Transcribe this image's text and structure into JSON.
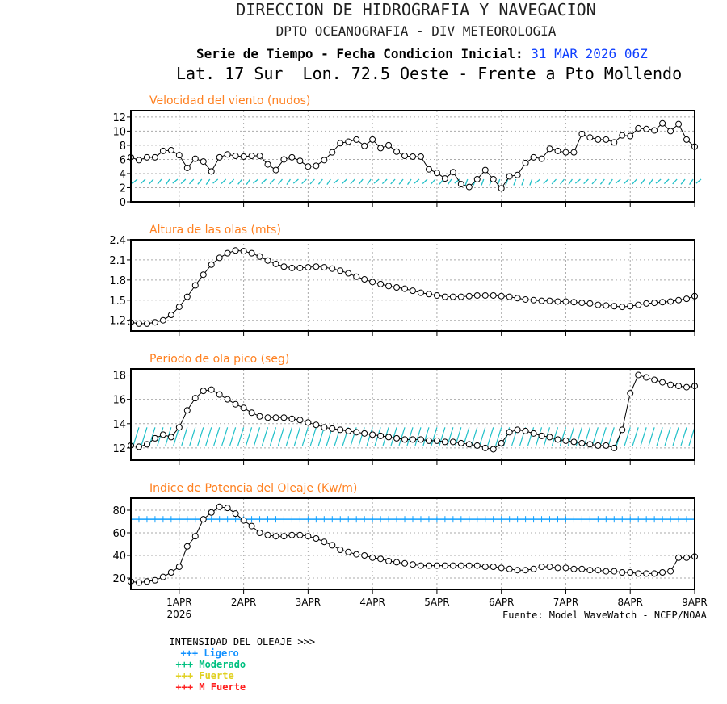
{
  "header": {
    "title": "DIRECCION DE HIDROGRAFIA Y NAVEGACION",
    "subtitle": "DPTO OCEANOGRAFIA - DIV METEOROLOGIA",
    "series_label": "Serie de Tiempo - Fecha Condicion Inicial:",
    "init_date": "31 MAR 2026 06Z",
    "location": "Lat. 17 Sur  Lon. 72.5 Oeste - Frente a Pto Mollendo"
  },
  "colors": {
    "title": "#ff8020",
    "date": "#1040ff",
    "arrows": "#20c0c8",
    "threshold": "#10a0ff"
  },
  "chart_data": [
    {
      "type": "line",
      "title": "Velocidad del viento (nudos)",
      "ylim": [
        0,
        12.9
      ],
      "yticks": [
        "0",
        "2",
        "4",
        "6",
        "8",
        "10",
        "12"
      ],
      "ytick_values": [
        0,
        2,
        4,
        6,
        8,
        10,
        12
      ],
      "values": [
        6.3,
        5.9,
        6.3,
        6.3,
        7.2,
        7.3,
        6.6,
        4.8,
        6.1,
        5.7,
        4.3,
        6.3,
        6.7,
        6.5,
        6.4,
        6.5,
        6.5,
        5.3,
        4.5,
        6.0,
        6.3,
        5.8,
        5.0,
        5.1,
        5.9,
        7.0,
        8.3,
        8.5,
        8.8,
        7.9,
        8.8,
        7.6,
        8.0,
        7.1,
        6.5,
        6.4,
        6.4,
        4.6,
        4.1,
        3.3,
        4.2,
        2.5,
        2.1,
        3.2,
        4.5,
        3.2,
        1.9,
        3.6,
        3.8,
        5.5,
        6.3,
        6.1,
        7.5,
        7.2,
        7.0,
        7.0,
        9.6,
        9.1,
        8.8,
        8.8,
        8.4,
        9.4,
        9.3,
        10.4,
        10.3,
        10.1,
        11.1,
        10.0,
        11.0,
        8.8,
        7.8
      ],
      "wind_arrows": true
    },
    {
      "type": "line",
      "title": "Altura de las olas (mts)",
      "ylim": [
        1.04,
        2.4
      ],
      "yticks": [
        "1.2",
        "1.5",
        "1.8",
        "2.1",
        "2.4"
      ],
      "ytick_values": [
        1.2,
        1.5,
        1.8,
        2.1,
        2.4
      ],
      "values": [
        1.17,
        1.15,
        1.15,
        1.17,
        1.2,
        1.28,
        1.4,
        1.55,
        1.72,
        1.88,
        2.03,
        2.13,
        2.2,
        2.24,
        2.23,
        2.2,
        2.15,
        2.09,
        2.04,
        2.0,
        1.98,
        1.98,
        1.99,
        2.0,
        1.99,
        1.97,
        1.94,
        1.9,
        1.85,
        1.81,
        1.77,
        1.74,
        1.71,
        1.69,
        1.67,
        1.64,
        1.61,
        1.59,
        1.57,
        1.55,
        1.55,
        1.55,
        1.56,
        1.57,
        1.57,
        1.57,
        1.56,
        1.55,
        1.53,
        1.51,
        1.5,
        1.49,
        1.49,
        1.48,
        1.48,
        1.47,
        1.46,
        1.45,
        1.43,
        1.42,
        1.41,
        1.4,
        1.41,
        1.43,
        1.45,
        1.46,
        1.47,
        1.48,
        1.5,
        1.52,
        1.56
      ]
    },
    {
      "type": "line",
      "title": "Periodo de ola pico (seg)",
      "ylim": [
        11,
        18.5
      ],
      "yticks": [
        "12",
        "14",
        "16",
        "18"
      ],
      "ytick_values": [
        12,
        14,
        16,
        18
      ],
      "values": [
        12.2,
        12.1,
        12.3,
        12.8,
        13.1,
        12.9,
        13.7,
        15.1,
        16.1,
        16.7,
        16.8,
        16.4,
        16.0,
        15.6,
        15.3,
        14.9,
        14.6,
        14.5,
        14.5,
        14.5,
        14.4,
        14.3,
        14.1,
        13.9,
        13.7,
        13.6,
        13.5,
        13.4,
        13.3,
        13.2,
        13.1,
        13.0,
        12.9,
        12.8,
        12.7,
        12.7,
        12.7,
        12.6,
        12.6,
        12.5,
        12.5,
        12.4,
        12.3,
        12.2,
        12.0,
        11.9,
        12.4,
        13.3,
        13.5,
        13.4,
        13.2,
        13.0,
        12.9,
        12.7,
        12.6,
        12.5,
        12.4,
        12.3,
        12.2,
        12.2,
        12.0,
        13.5,
        16.5,
        18.0,
        17.8,
        17.6,
        17.4,
        17.2,
        17.1,
        17.0,
        17.1
      ],
      "swell_arrows": true
    },
    {
      "type": "line",
      "title": "Indice de Potencia del Oleaje (Kw/m)",
      "ylim": [
        10,
        90.7
      ],
      "yticks": [
        "20",
        "40",
        "60",
        "80"
      ],
      "ytick_values": [
        20,
        40,
        60,
        80
      ],
      "values": [
        17,
        16,
        17,
        18,
        21,
        25,
        30,
        48,
        57,
        72,
        78,
        83,
        82,
        77,
        71,
        66,
        60,
        58,
        57,
        57,
        58,
        58,
        57,
        55,
        52,
        49,
        45,
        43,
        41,
        40,
        38,
        37,
        35,
        34,
        33,
        32,
        31,
        31,
        31,
        31,
        31,
        31,
        31,
        31,
        30,
        30,
        29,
        28,
        27,
        27,
        28,
        30,
        30,
        29,
        29,
        28,
        28,
        27,
        27,
        26,
        26,
        25,
        25,
        24,
        24,
        24,
        25,
        26,
        38,
        38,
        39
      ],
      "threshold": 72
    }
  ],
  "xaxis": {
    "ticks": [
      "1APR",
      "2APR",
      "3APR",
      "4APR",
      "5APR",
      "6APR",
      "7APR",
      "8APR",
      "9APR"
    ],
    "year": "2026",
    "tick_days": [
      0.75,
      1.75,
      2.75,
      3.75,
      4.75,
      5.75,
      6.75,
      7.75,
      8.75
    ],
    "span_days": 8.75
  },
  "footer": {
    "source": "Fuente: Model WaveWatch - NCEP/NOAA",
    "legend_title": "INTENSIDAD DEL OLEAJE >>>",
    "legend": [
      {
        "label": "+++ Ligero",
        "color": "#1090ff"
      },
      {
        "label": "+++ Moderado",
        "color": "#00c080"
      },
      {
        "label": "+++ Fuerte",
        "color": "#e0d020"
      },
      {
        "label": "+++ M Fuerte",
        "color": "#ff2020"
      }
    ]
  }
}
